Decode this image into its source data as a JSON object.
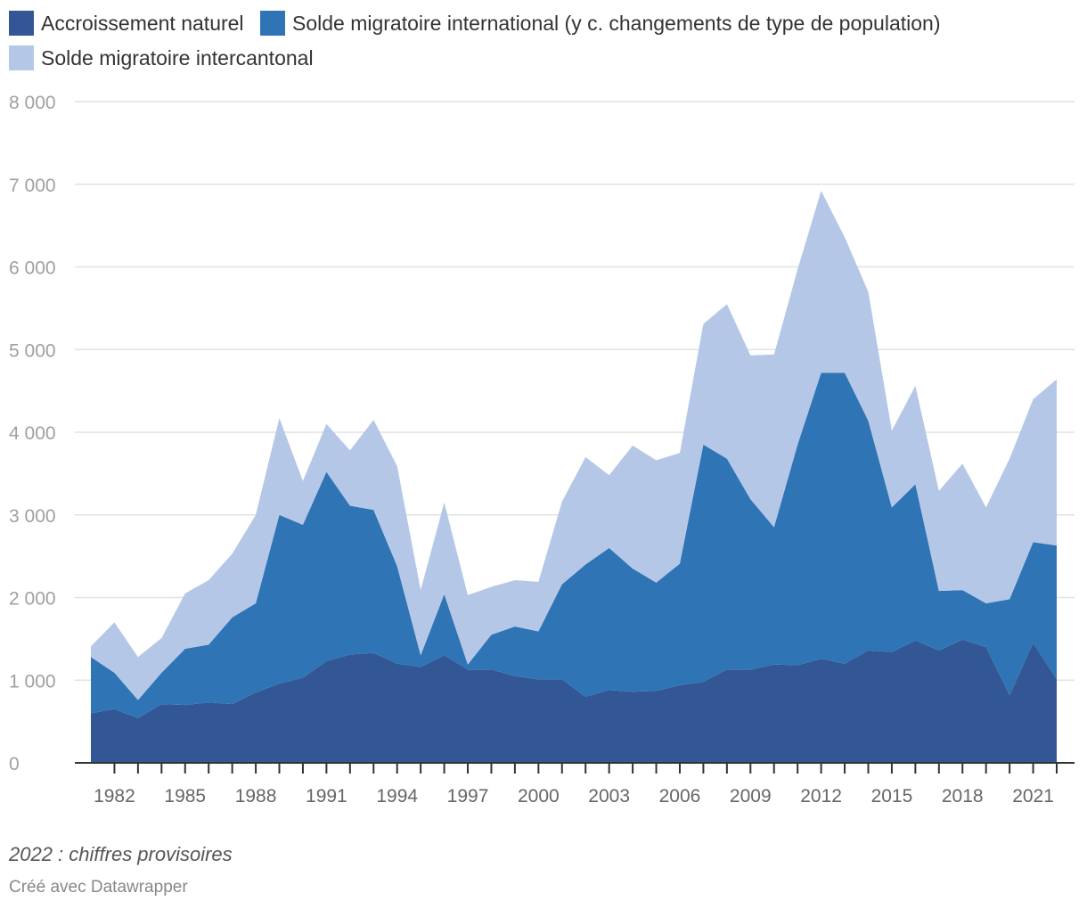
{
  "chart_data": {
    "type": "area",
    "stacked": true,
    "x": [
      1981,
      1982,
      1983,
      1984,
      1985,
      1986,
      1987,
      1988,
      1989,
      1990,
      1991,
      1992,
      1993,
      1994,
      1995,
      1996,
      1997,
      1998,
      1999,
      2000,
      2001,
      2002,
      2003,
      2004,
      2005,
      2006,
      2007,
      2008,
      2009,
      2010,
      2011,
      2012,
      2013,
      2014,
      2015,
      2016,
      2017,
      2018,
      2019,
      2020,
      2021,
      2022
    ],
    "series": [
      {
        "name": "Accroissement naturel",
        "color": "#335694",
        "values": [
          600,
          650,
          540,
          710,
          700,
          730,
          710,
          850,
          960,
          1030,
          1230,
          1310,
          1330,
          1200,
          1160,
          1300,
          1130,
          1130,
          1050,
          1010,
          1010,
          800,
          880,
          860,
          870,
          940,
          980,
          1130,
          1130,
          1190,
          1180,
          1260,
          1200,
          1360,
          1340,
          1480,
          1360,
          1490,
          1400,
          820,
          1450,
          1010
        ]
      },
      {
        "name": "Solde migratoire international (y c. changements de type de population)",
        "color": "#2f75b5",
        "values": [
          680,
          440,
          220,
          380,
          680,
          700,
          1050,
          1080,
          2040,
          1850,
          2290,
          1800,
          1730,
          1180,
          140,
          740,
          60,
          420,
          600,
          580,
          1150,
          1600,
          1720,
          1490,
          1310,
          1470,
          2870,
          2550,
          2060,
          1660,
          2670,
          3460,
          3520,
          2780,
          1750,
          1890,
          720,
          600,
          530,
          1160,
          1220,
          1620
        ]
      },
      {
        "name": "Solde migratoire intercantonal",
        "color": "#b5c7e7",
        "values": [
          130,
          610,
          520,
          420,
          670,
          780,
          770,
          1070,
          1170,
          530,
          580,
          670,
          1090,
          1210,
          790,
          1110,
          840,
          580,
          560,
          600,
          1000,
          1300,
          880,
          1490,
          1480,
          1340,
          1460,
          1870,
          1740,
          2090,
          2120,
          2200,
          1640,
          1560,
          930,
          1190,
          1210,
          1530,
          1160,
          1700,
          1730,
          2010
        ]
      }
    ],
    "yticks": [
      0,
      1000,
      2000,
      3000,
      4000,
      5000,
      6000,
      7000,
      8000
    ],
    "ytick_labels": [
      "0",
      "1 000",
      "2 000",
      "3 000",
      "4 000",
      "5 000",
      "6 000",
      "7 000",
      "8 000"
    ],
    "xticks": [
      1982,
      1985,
      1988,
      1991,
      1994,
      1997,
      2000,
      2003,
      2006,
      2009,
      2012,
      2015,
      2018,
      2021
    ],
    "xtick_labels": [
      "1982",
      "1985",
      "1988",
      "1991",
      "1994",
      "1997",
      "2000",
      "2003",
      "2006",
      "2009",
      "2012",
      "2015",
      "2018",
      "2021"
    ],
    "ylim": [
      0,
      8000
    ],
    "xlim": [
      1981,
      2022
    ],
    "grid": true,
    "legend": "top-left"
  },
  "legend": {
    "items": [
      {
        "label": "Accroissement naturel",
        "color": "#335694"
      },
      {
        "label": "Solde migratoire international (y c. changements de type de population)",
        "color": "#2f75b5"
      },
      {
        "label": "Solde migratoire intercantonal",
        "color": "#b5c7e7"
      }
    ]
  },
  "note": "2022 : chiffres provisoires",
  "credit": "Créé avec Datawrapper"
}
